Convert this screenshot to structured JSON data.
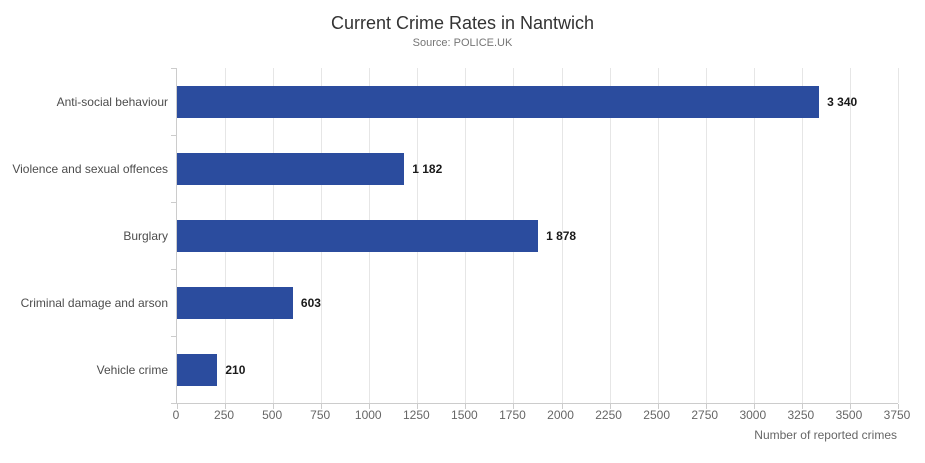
{
  "chart": {
    "title": "Current Crime Rates in Nantwich",
    "subtitle": "Source: POLICE.UK",
    "colors": {
      "bar": "#2b4c9e",
      "gridline": "#e6e6e6",
      "axis_line": "#cccccc",
      "title_text": "#333333",
      "subtitle_text": "#757575",
      "category_text": "#4d4d4d",
      "tick_text": "#666666",
      "value_text": "#1a1a1a",
      "background": "#ffffff"
    }
  },
  "chart_data": {
    "type": "bar",
    "orientation": "horizontal",
    "title": "Current Crime Rates in Nantwich",
    "subtitle": "Source: POLICE.UK",
    "categories": [
      "Anti-social behaviour",
      "Violence and sexual offences",
      "Burglary",
      "Criminal damage and arson",
      "Vehicle crime"
    ],
    "values": [
      3340,
      1182,
      1878,
      603,
      210
    ],
    "value_labels": [
      "3 340",
      "1 182",
      "1 878",
      "603",
      "210"
    ],
    "xlabel": "Number of reported crimes",
    "ylabel": "",
    "xlim": [
      0,
      3750
    ],
    "xticks": [
      0,
      250,
      500,
      750,
      1000,
      1250,
      1500,
      1750,
      2000,
      2250,
      2500,
      2750,
      3000,
      3250,
      3500,
      3750
    ],
    "grid": "vertical",
    "legend": false
  }
}
